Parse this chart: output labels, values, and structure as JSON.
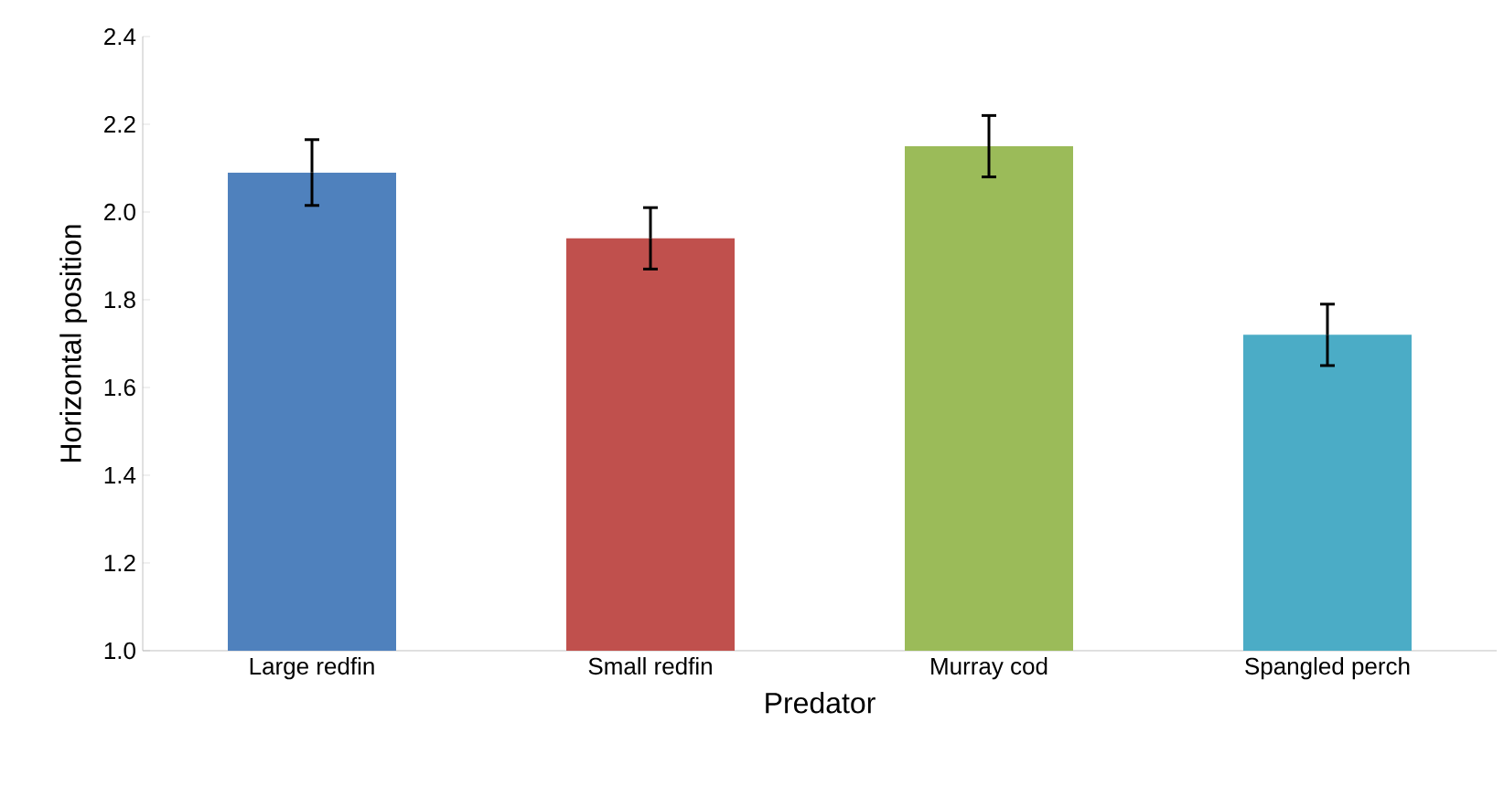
{
  "chart_data": {
    "type": "bar",
    "xlabel": "Predator",
    "ylabel": "Horizontal position",
    "categories": [
      "Large redfin",
      "Small redfin",
      "Murray cod",
      "Spangled perch"
    ],
    "values": [
      2.09,
      1.94,
      2.15,
      1.72
    ],
    "errors": [
      0.075,
      0.07,
      0.07,
      0.07
    ],
    "colors": [
      "#4f81bd",
      "#c0504d",
      "#9bbb59",
      "#4bacc6"
    ],
    "ylim": [
      1.0,
      2.4
    ],
    "yticks": [
      {
        "value": 1.0,
        "label": "1.0"
      },
      1.2,
      1.4,
      1.6,
      1.8,
      {
        "value": 2.0,
        "label": "2.0"
      },
      2.2,
      2.4
    ],
    "grid": false,
    "legend": false
  }
}
